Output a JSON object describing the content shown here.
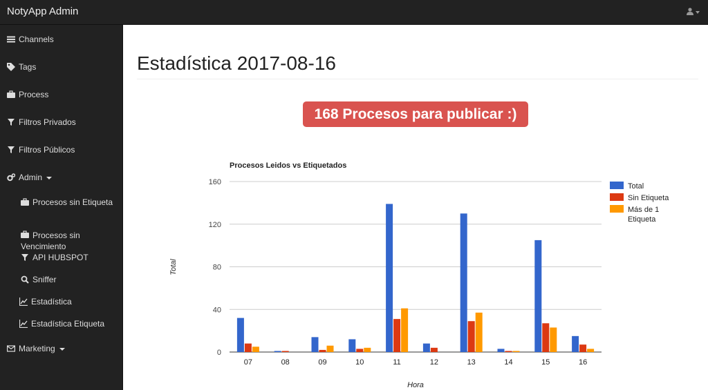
{
  "app": {
    "brand": "NotyApp Admin"
  },
  "sidebar": {
    "items": [
      {
        "label": "Channels",
        "icon": "list-icon"
      },
      {
        "label": "Tags",
        "icon": "tags-icon"
      },
      {
        "label": "Process",
        "icon": "briefcase-icon"
      },
      {
        "label": "Filtros Privados",
        "icon": "filter-icon"
      },
      {
        "label": "Filtros Públicos",
        "icon": "filter-icon"
      },
      {
        "label": "Admin",
        "icon": "cogs-icon"
      },
      {
        "label": "Procesos sin Etiqueta",
        "icon": "briefcase-icon"
      },
      {
        "label": "Procesos sin\nVencimiento",
        "icon": "briefcase-icon"
      },
      {
        "label": "API HUBSPOT",
        "icon": "filter-icon"
      },
      {
        "label": "Sniffer",
        "icon": "search-icon"
      },
      {
        "label": "Estadística",
        "icon": "line-chart-icon"
      },
      {
        "label": "Estadística Etiqueta",
        "icon": "line-chart-icon"
      },
      {
        "label": "Marketing",
        "icon": "envelope-icon"
      }
    ]
  },
  "main": {
    "title": "Estadística 2017-08-16",
    "alert": "168 Procesos para publicar :)"
  },
  "colors": {
    "total": "#3366cc",
    "sin": "#dc3912",
    "mas": "#ff9900",
    "alert": "#d9534f",
    "sidebar": "#222222"
  },
  "chart_data": {
    "type": "bar",
    "title": "Procesos Leidos vs Etiquetados",
    "xlabel": "Hora",
    "ylabel": "Total",
    "categories": [
      "07",
      "08",
      "09",
      "10",
      "11",
      "12",
      "13",
      "14",
      "15",
      "16"
    ],
    "series": [
      {
        "name": "Total",
        "color": "#3366cc",
        "values": [
          32,
          1,
          14,
          12,
          139,
          8,
          130,
          3,
          105,
          15
        ]
      },
      {
        "name": "Sin Etiqueta",
        "color": "#dc3912",
        "values": [
          8,
          1,
          2,
          3,
          31,
          4,
          29,
          1,
          27,
          7
        ]
      },
      {
        "name": "Más de 1 Etiqueta",
        "color": "#ff9900",
        "values": [
          5,
          0,
          6,
          4,
          41,
          0,
          37,
          1,
          23,
          3
        ]
      }
    ],
    "ylim": [
      0,
      160
    ],
    "yticks": [
      0,
      40,
      80,
      120,
      160
    ],
    "grid": true,
    "legend": "right"
  }
}
